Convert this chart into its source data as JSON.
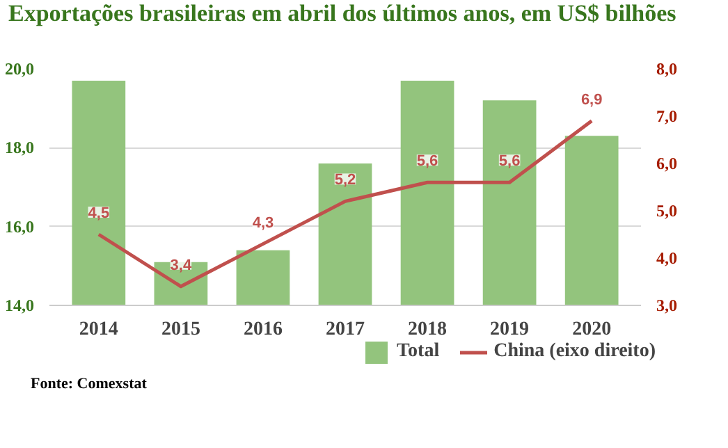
{
  "chart_data": {
    "type": "bar",
    "title": "Exportações brasileiras em abril dos últimos anos, em US$ bilhões",
    "categories": [
      "2014",
      "2015",
      "2016",
      "2017",
      "2018",
      "2019",
      "2020"
    ],
    "series": [
      {
        "name": "Total",
        "color": "#93c47d",
        "values": [
          19.7,
          15.1,
          15.4,
          17.6,
          19.7,
          19.2,
          18.3
        ]
      },
      {
        "name": "China (eixo direito)",
        "type": "line",
        "axis": "y2",
        "color": "#c0504d",
        "values": [
          4.5,
          3.4,
          4.3,
          5.2,
          5.6,
          5.6,
          6.9
        ],
        "value_labels": [
          "4,5",
          "3,4",
          "4,3",
          "5,2",
          "5,6",
          "5,6",
          "6,9"
        ]
      }
    ],
    "ylim": [
      14,
      20
    ],
    "yticks": [
      {
        "value": 14,
        "label": "14,0"
      },
      {
        "value": 16,
        "label": "16,0"
      },
      {
        "value": 18,
        "label": "18,0"
      },
      {
        "value": 20,
        "label": "20,0"
      }
    ],
    "y2lim": [
      3,
      8
    ],
    "y2ticks": [
      {
        "value": 3,
        "label": "3,0"
      },
      {
        "value": 4,
        "label": "4,0"
      },
      {
        "value": 5,
        "label": "5,0"
      },
      {
        "value": 6,
        "label": "6,0"
      },
      {
        "value": 7,
        "label": "7,0"
      },
      {
        "value": 8,
        "label": "8,0"
      }
    ],
    "grid": "y",
    "legend": "bottom right",
    "marker": "none",
    "line_style": "solid",
    "annotations": [
      "Fonte: Comexstat"
    ]
  }
}
